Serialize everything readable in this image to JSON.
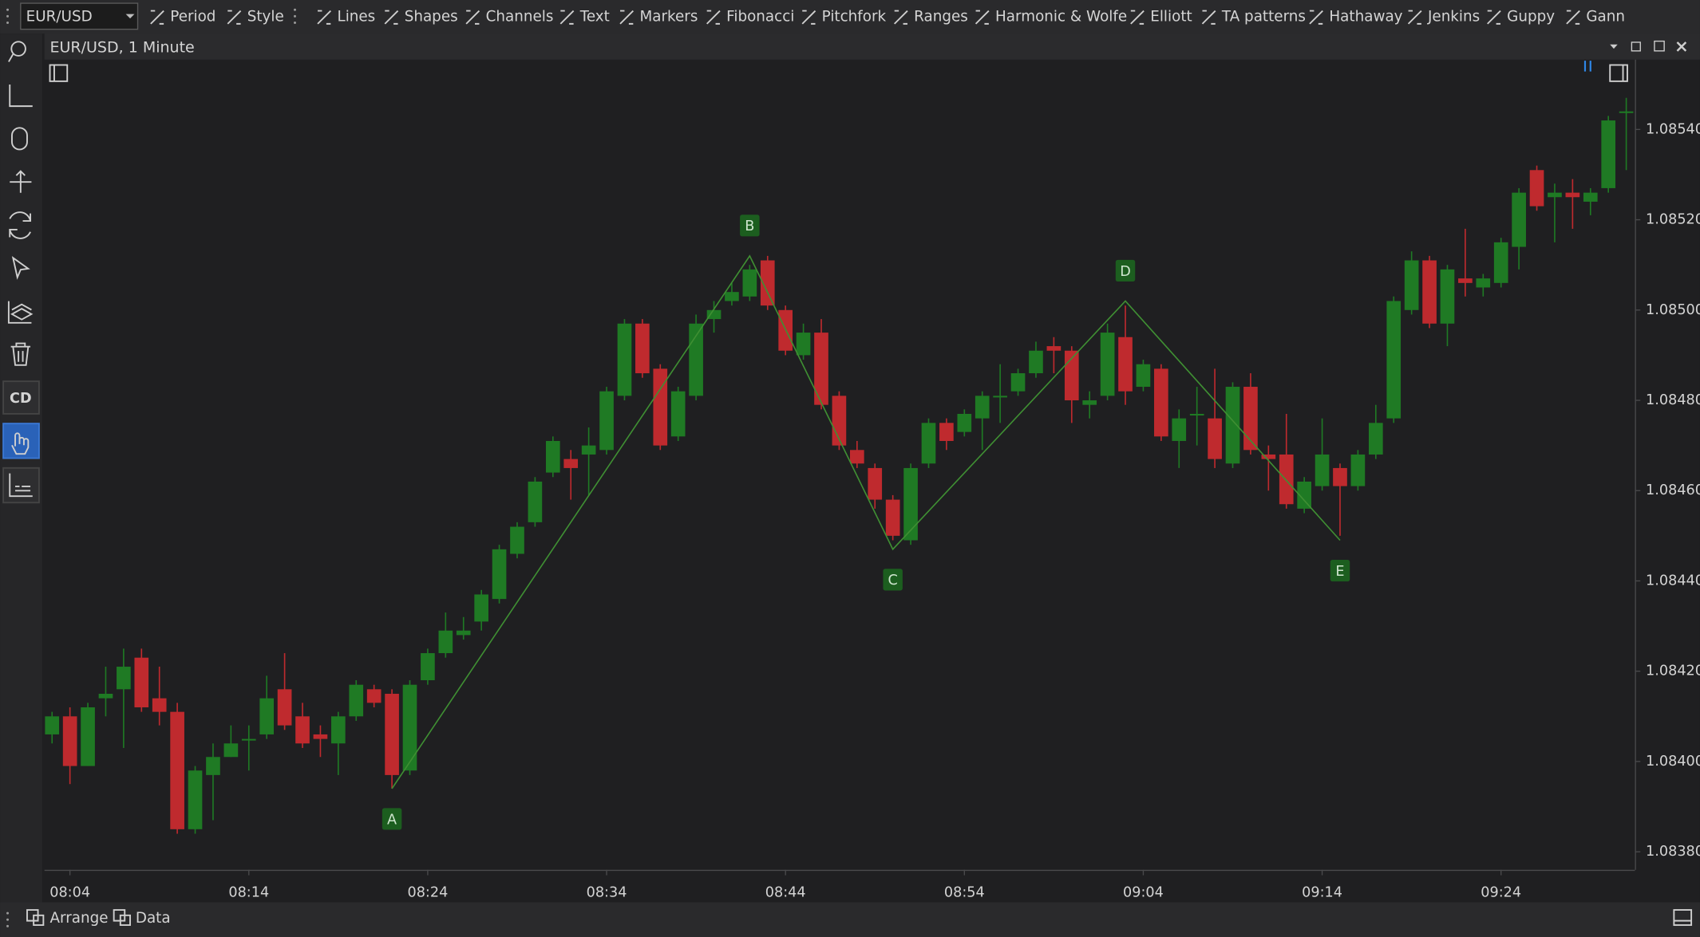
{
  "toolbar": {
    "symbol": "EUR/USD",
    "items": [
      "Period",
      "Style",
      "Lines",
      "Shapes",
      "Channels",
      "Text",
      "Markers",
      "Fibonacci",
      "Pitchfork",
      "Ranges",
      "Harmonic & Wolfe",
      "Elliott",
      "TA patterns",
      "Hathaway",
      "Jenkins",
      "Guppy",
      "Gann"
    ]
  },
  "side_tools": {
    "cd_label": "CD"
  },
  "window": {
    "title": "EUR/USD, 1 Minute"
  },
  "footer": {
    "items": [
      "Arrange",
      "Data"
    ]
  },
  "chart_data": {
    "type": "candlestick",
    "up_color": "#1f7a24",
    "down_color": "#bf2a2e",
    "x": [
      "08:03",
      "08:04",
      "08:05",
      "08:06",
      "08:07",
      "08:08",
      "08:09",
      "08:10",
      "08:11",
      "08:12",
      "08:13",
      "08:14",
      "08:15",
      "08:16",
      "08:17",
      "08:18",
      "08:19",
      "08:20",
      "08:21",
      "08:22",
      "08:23",
      "08:24",
      "08:25",
      "08:26",
      "08:27",
      "08:28",
      "08:29",
      "08:30",
      "08:31",
      "08:32",
      "08:33",
      "08:34",
      "08:35",
      "08:36",
      "08:37",
      "08:38",
      "08:39",
      "08:40",
      "08:41",
      "08:42",
      "08:43",
      "08:44",
      "08:45",
      "08:46",
      "08:47",
      "08:48",
      "08:49",
      "08:50",
      "08:51",
      "08:52",
      "08:53",
      "08:54",
      "08:55",
      "08:56",
      "08:57",
      "08:58",
      "08:59",
      "09:00",
      "09:01",
      "09:02",
      "09:03",
      "09:04",
      "09:05",
      "09:06",
      "09:07",
      "09:08",
      "09:09",
      "09:10",
      "09:11",
      "09:12",
      "09:13",
      "09:14",
      "09:15",
      "09:16",
      "09:17",
      "09:18",
      "09:19",
      "09:20",
      "09:21",
      "09:22",
      "09:23",
      "09:24",
      "09:25",
      "09:26",
      "09:27",
      "09:28",
      "09:29",
      "09:30",
      "09:31"
    ],
    "open": [
      1.08406,
      1.0841,
      1.08399,
      1.08414,
      1.08416,
      1.08423,
      1.08414,
      1.08411,
      1.08385,
      1.08397,
      1.08401,
      1.08405,
      1.08406,
      1.08416,
      1.0841,
      1.08406,
      1.08404,
      1.0841,
      1.08416,
      1.08415,
      1.08398,
      1.08418,
      1.08424,
      1.08428,
      1.08431,
      1.08436,
      1.08446,
      1.08453,
      1.08464,
      1.08467,
      1.08468,
      1.08469,
      1.08481,
      1.08497,
      1.08487,
      1.08472,
      1.08481,
      1.08498,
      1.08502,
      1.08503,
      1.08511,
      1.085,
      1.0849,
      1.08495,
      1.08481,
      1.08469,
      1.08465,
      1.08458,
      1.08449,
      1.08466,
      1.08475,
      1.08473,
      1.08476,
      1.08481,
      1.08482,
      1.08486,
      1.08492,
      1.08491,
      1.08479,
      1.08481,
      1.08494,
      1.08483,
      1.08487,
      1.08471,
      1.08477,
      1.08476,
      1.08466,
      1.08483,
      1.08468,
      1.08468,
      1.08456,
      1.08461,
      1.08465,
      1.08461,
      1.08468,
      1.08476,
      1.085,
      1.08511,
      1.08497,
      1.08507,
      1.08505,
      1.08506,
      1.08514,
      1.08531,
      1.08525,
      1.08526,
      1.08524,
      1.08527,
      1.08544
    ],
    "high": [
      1.08411,
      1.08412,
      1.08413,
      1.08421,
      1.08425,
      1.08425,
      1.08421,
      1.08413,
      1.08399,
      1.08404,
      1.08408,
      1.08408,
      1.08419,
      1.08424,
      1.08413,
      1.08408,
      1.08411,
      1.08418,
      1.08417,
      1.08416,
      1.08418,
      1.08425,
      1.08433,
      1.08432,
      1.08438,
      1.08448,
      1.08453,
      1.08463,
      1.08472,
      1.08469,
      1.08474,
      1.08483,
      1.08498,
      1.08498,
      1.08488,
      1.08483,
      1.08499,
      1.08502,
      1.08506,
      1.0851,
      1.08512,
      1.08501,
      1.08497,
      1.08498,
      1.08482,
      1.08471,
      1.08466,
      1.08459,
      1.08466,
      1.08476,
      1.08476,
      1.08478,
      1.08482,
      1.08488,
      1.08487,
      1.08493,
      1.08494,
      1.08492,
      1.08482,
      1.08497,
      1.08501,
      1.08489,
      1.08488,
      1.08478,
      1.08483,
      1.08487,
      1.08484,
      1.08486,
      1.0847,
      1.08477,
      1.08463,
      1.08476,
      1.08466,
      1.08469,
      1.08479,
      1.08503,
      1.08513,
      1.08512,
      1.0851,
      1.08518,
      1.08508,
      1.08516,
      1.08527,
      1.08532,
      1.08528,
      1.08529,
      1.08527,
      1.08543,
      1.08547
    ],
    "low": [
      1.08404,
      1.08395,
      1.08399,
      1.0841,
      1.08403,
      1.08411,
      1.08408,
      1.08384,
      1.08384,
      1.08387,
      1.08401,
      1.08398,
      1.08405,
      1.08407,
      1.08403,
      1.08401,
      1.08397,
      1.08409,
      1.08412,
      1.08394,
      1.08397,
      1.08417,
      1.08423,
      1.08427,
      1.08429,
      1.08435,
      1.08445,
      1.08452,
      1.08463,
      1.08458,
      1.08459,
      1.08468,
      1.0848,
      1.08485,
      1.08469,
      1.08471,
      1.0848,
      1.08495,
      1.08501,
      1.08502,
      1.085,
      1.0849,
      1.08489,
      1.08478,
      1.08469,
      1.08465,
      1.08456,
      1.08449,
      1.08448,
      1.08465,
      1.08469,
      1.08472,
      1.08469,
      1.08475,
      1.08481,
      1.08485,
      1.08486,
      1.08475,
      1.08476,
      1.0848,
      1.08479,
      1.08482,
      1.08471,
      1.08465,
      1.0847,
      1.08465,
      1.08465,
      1.08468,
      1.0846,
      1.08456,
      1.08455,
      1.0846,
      1.0845,
      1.0846,
      1.08467,
      1.08475,
      1.08499,
      1.08496,
      1.08492,
      1.08503,
      1.08503,
      1.08505,
      1.08509,
      1.08522,
      1.08515,
      1.08518,
      1.08521,
      1.08526,
      1.08531
    ],
    "close": [
      1.0841,
      1.08399,
      1.08412,
      1.08415,
      1.08421,
      1.08412,
      1.08411,
      1.08385,
      1.08398,
      1.08401,
      1.08404,
      1.08405,
      1.08414,
      1.08408,
      1.08404,
      1.08405,
      1.0841,
      1.08417,
      1.08413,
      1.08397,
      1.08417,
      1.08424,
      1.08429,
      1.08429,
      1.08437,
      1.08447,
      1.08452,
      1.08462,
      1.08471,
      1.08465,
      1.0847,
      1.08482,
      1.08497,
      1.08486,
      1.0847,
      1.08482,
      1.08497,
      1.085,
      1.08504,
      1.08509,
      1.08501,
      1.08491,
      1.08495,
      1.08479,
      1.0847,
      1.08466,
      1.08458,
      1.0845,
      1.08465,
      1.08475,
      1.08471,
      1.08477,
      1.08481,
      1.08481,
      1.08486,
      1.08491,
      1.08491,
      1.0848,
      1.0848,
      1.08495,
      1.08482,
      1.08488,
      1.08472,
      1.08476,
      1.08477,
      1.08467,
      1.08483,
      1.08469,
      1.08467,
      1.08457,
      1.08462,
      1.08468,
      1.08461,
      1.08468,
      1.08475,
      1.08502,
      1.08511,
      1.08497,
      1.08509,
      1.08506,
      1.08507,
      1.08515,
      1.08526,
      1.08523,
      1.08526,
      1.08525,
      1.08526,
      1.08542,
      1.08544
    ],
    "ylim": [
      1.08376,
      1.08555
    ],
    "yticks": [
      {
        "value": 1.0838,
        "label": "1.08380"
      },
      {
        "value": 1.084,
        "label": "1.08400"
      },
      {
        "value": 1.0842,
        "label": "1.08420"
      },
      {
        "value": 1.0844,
        "label": "1.08440"
      },
      {
        "value": 1.0846,
        "label": "1.08460"
      },
      {
        "value": 1.0848,
        "label": "1.08480"
      },
      {
        "value": 1.085,
        "label": "1.08500"
      },
      {
        "value": 1.0852,
        "label": "1.08520"
      },
      {
        "value": 1.0854,
        "label": "1.08540"
      }
    ],
    "xticks": [
      "08:04",
      "08:14",
      "08:24",
      "08:34",
      "08:44",
      "08:54",
      "09:04",
      "09:14",
      "09:24"
    ],
    "pattern": {
      "color": "#3f8f33",
      "label_color": "#1c5e1f",
      "points": [
        {
          "label": "A",
          "x": "08:22",
          "value": 1.08394
        },
        {
          "label": "B",
          "x": "08:42",
          "value": 1.08512
        },
        {
          "label": "C",
          "x": "08:50",
          "value": 1.08447
        },
        {
          "label": "D",
          "x": "09:03",
          "value": 1.08502
        },
        {
          "label": "E",
          "x": "09:15",
          "value": 1.08449
        }
      ]
    }
  }
}
